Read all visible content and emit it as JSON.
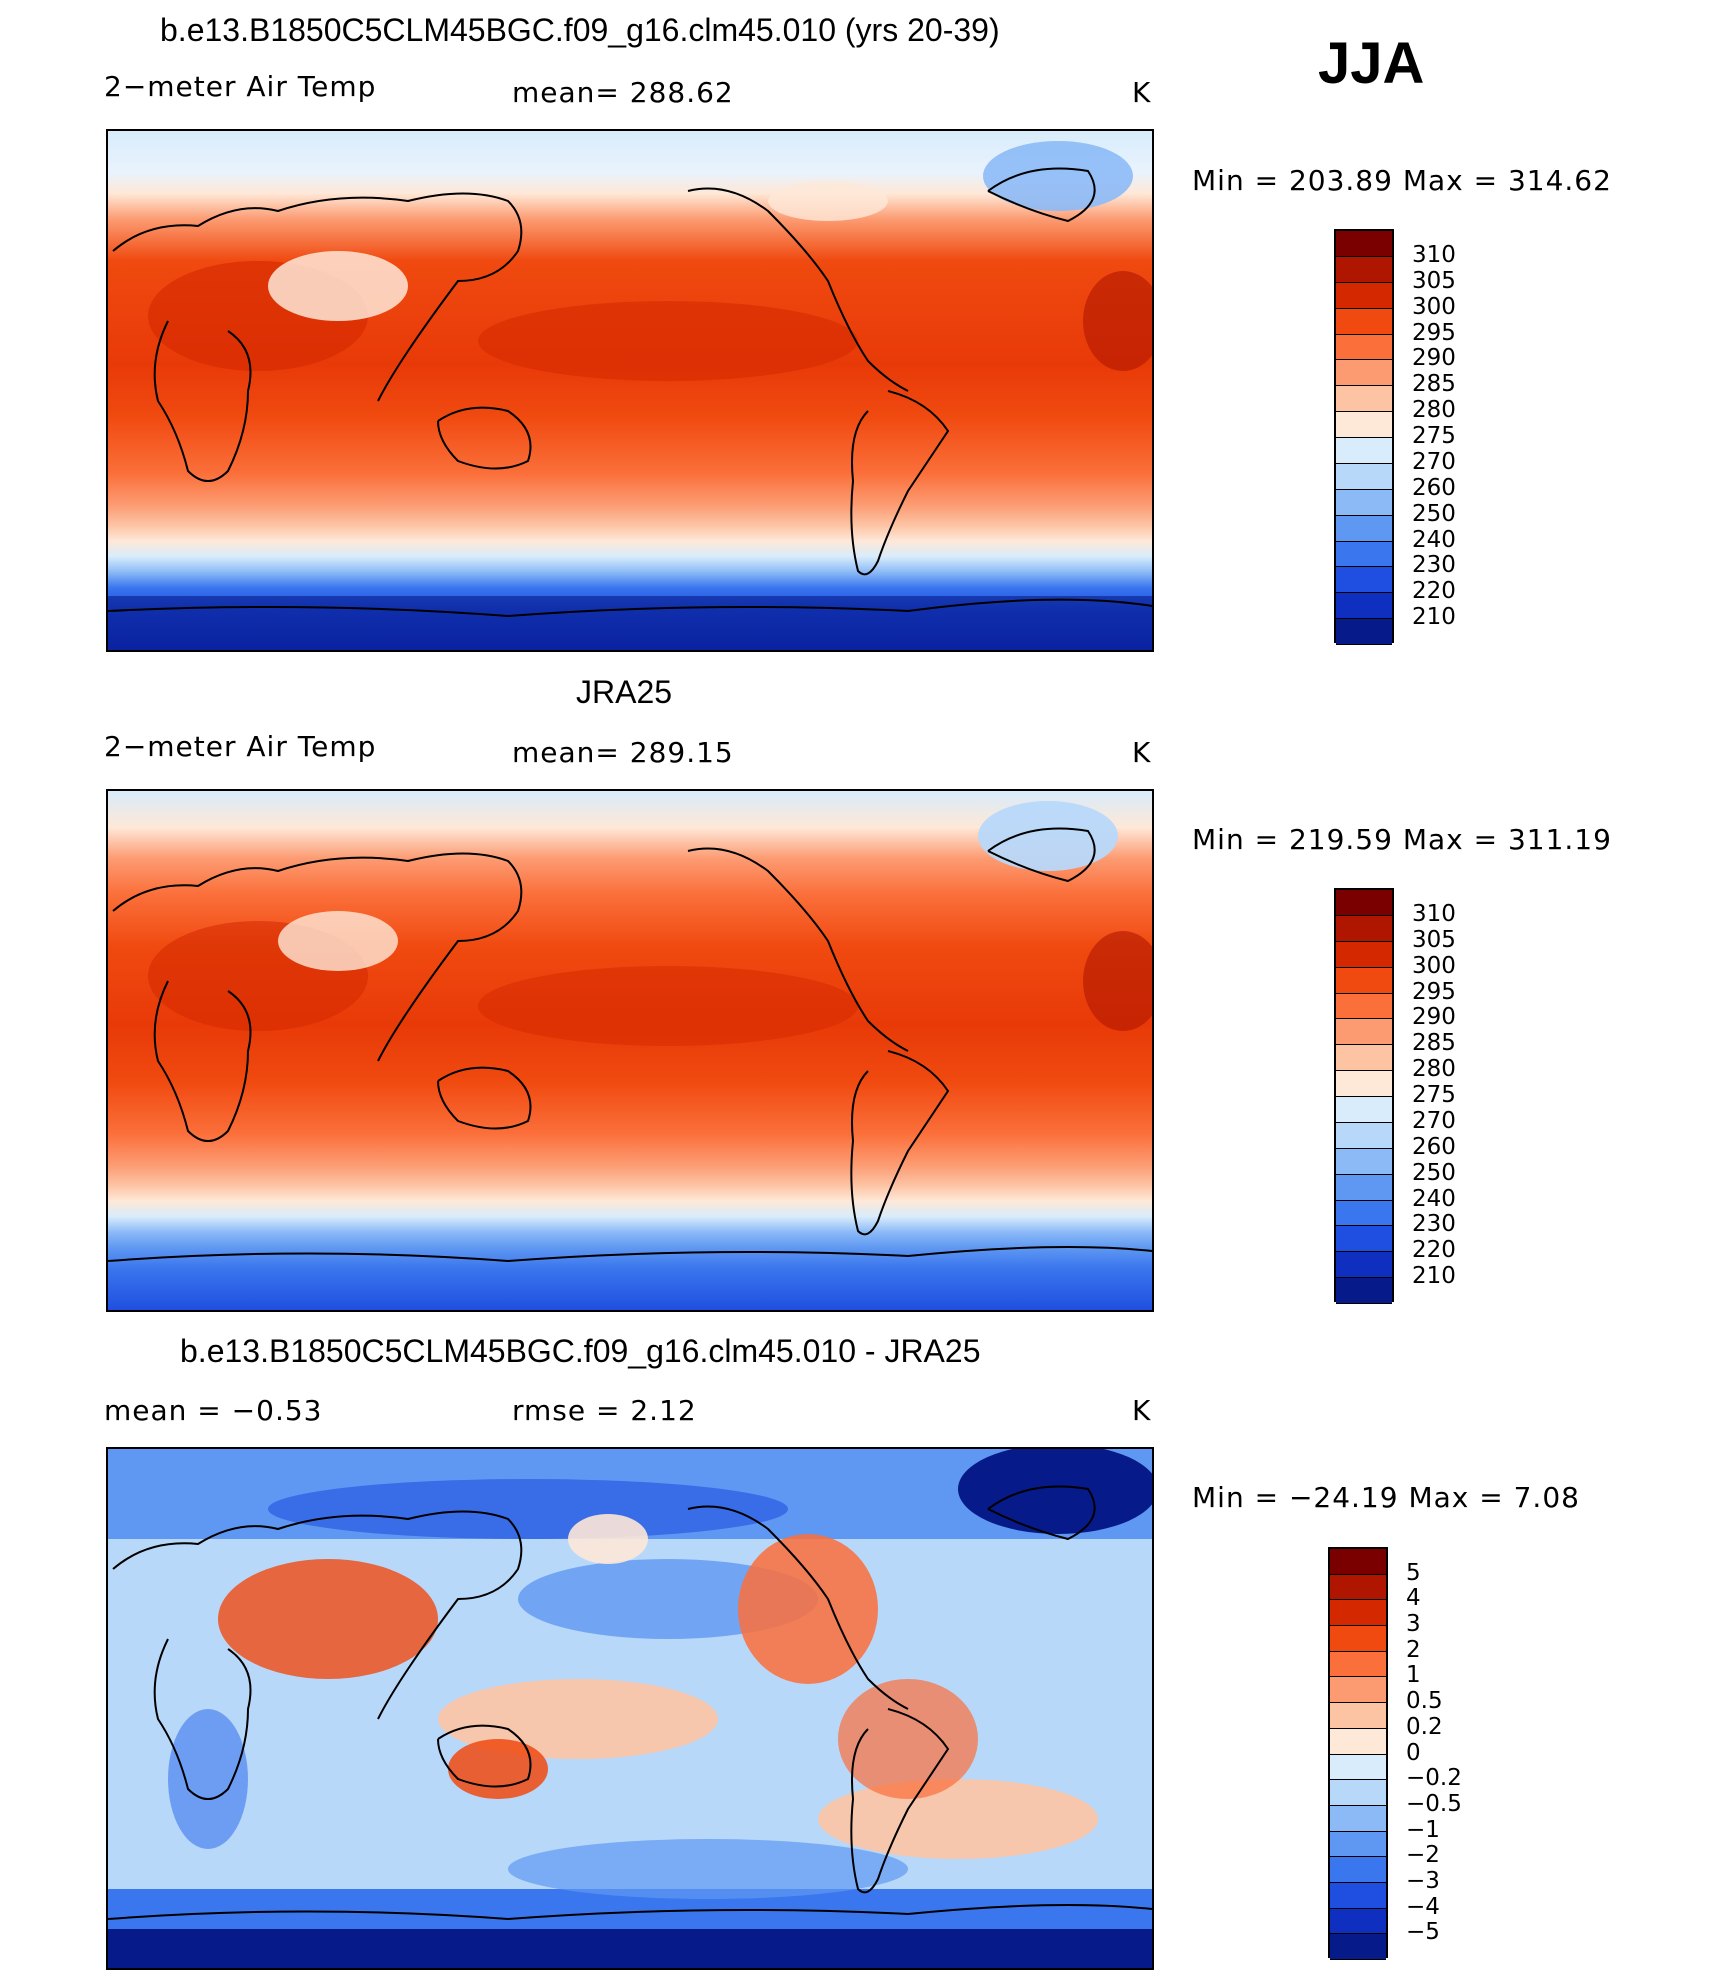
{
  "season": "JJA",
  "panels": [
    {
      "title": "b.e13.B1850C5CLM45BGC.f09_g16.clm45.010 (yrs 20-39)",
      "left": "2−meter Air Temp",
      "center": "mean=  288.62",
      "right": "K",
      "minmax": "Min  =  203.89  Max  =  314.62"
    },
    {
      "title": "JRA25",
      "left": "2−meter Air Temp",
      "center": "mean=  289.15",
      "right": "K",
      "minmax": "Min  =  219.59  Max  =  311.19"
    },
    {
      "title": "b.e13.B1850C5CLM45BGC.f09_g16.clm45.010 - JRA25",
      "left": "mean  =     −0.53",
      "center": "rmse  =     2.12",
      "right": "K",
      "minmax": "Min  =  −24.19  Max  =      7.08"
    }
  ],
  "colorbars": [
    {
      "labels": [
        "310",
        "305",
        "300",
        "295",
        "290",
        "285",
        "280",
        "275",
        "270",
        "260",
        "250",
        "240",
        "230",
        "220",
        "210"
      ],
      "colors": [
        "#7a0000",
        "#b01500",
        "#d42800",
        "#f04a10",
        "#fb6f3a",
        "#fc9b72",
        "#fdc4a4",
        "#fee8d8",
        "#d8ecfb",
        "#b8d8fa",
        "#8cbaf7",
        "#5f98f2",
        "#3a76ee",
        "#1f4fe0",
        "#0f2fc0",
        "#061a8a"
      ]
    },
    {
      "labels": [
        "310",
        "305",
        "300",
        "295",
        "290",
        "285",
        "280",
        "275",
        "270",
        "260",
        "250",
        "240",
        "230",
        "220",
        "210"
      ],
      "colors": [
        "#7a0000",
        "#b01500",
        "#d42800",
        "#f04a10",
        "#fb6f3a",
        "#fc9b72",
        "#fdc4a4",
        "#fee8d8",
        "#d8ecfb",
        "#b8d8fa",
        "#8cbaf7",
        "#5f98f2",
        "#3a76ee",
        "#1f4fe0",
        "#0f2fc0",
        "#061a8a"
      ]
    },
    {
      "labels": [
        "5",
        "4",
        "3",
        "2",
        "1",
        "0.5",
        "0.2",
        "0",
        "−0.2",
        "−0.5",
        "−1",
        "−2",
        "−3",
        "−4",
        "−5"
      ],
      "colors": [
        "#7a0000",
        "#b01500",
        "#d42800",
        "#f04a10",
        "#fb6f3a",
        "#fc9b72",
        "#fdc4a4",
        "#fee8d8",
        "#d8ecfb",
        "#b8d8fa",
        "#8cbaf7",
        "#5f98f2",
        "#3a76ee",
        "#1f4fe0",
        "#0f2fc0",
        "#061a8a"
      ]
    }
  ],
  "chart_data": [
    {
      "type": "heatmap",
      "title": "b.e13.B1850C5CLM45BGC.f09_g16.clm45.010 (yrs 20-39)",
      "variable": "2-meter Air Temp",
      "units": "K",
      "mean": 288.62,
      "min": 203.89,
      "max": 314.62,
      "levels": [
        210,
        220,
        230,
        240,
        250,
        260,
        270,
        275,
        280,
        285,
        290,
        295,
        300,
        305,
        310
      ]
    },
    {
      "type": "heatmap",
      "title": "JRA25",
      "variable": "2-meter Air Temp",
      "units": "K",
      "mean": 289.15,
      "min": 219.59,
      "max": 311.19,
      "levels": [
        210,
        220,
        230,
        240,
        250,
        260,
        270,
        275,
        280,
        285,
        290,
        295,
        300,
        305,
        310
      ]
    },
    {
      "type": "heatmap",
      "title": "b.e13.B1850C5CLM45BGC.f09_g16.clm45.010 - JRA25",
      "units": "K",
      "mean": -0.53,
      "rmse": 2.12,
      "min": -24.19,
      "max": 7.08,
      "levels": [
        -5,
        -4,
        -3,
        -2,
        -1,
        -0.5,
        -0.2,
        0,
        0.2,
        0.5,
        1,
        2,
        3,
        4,
        5
      ]
    }
  ]
}
